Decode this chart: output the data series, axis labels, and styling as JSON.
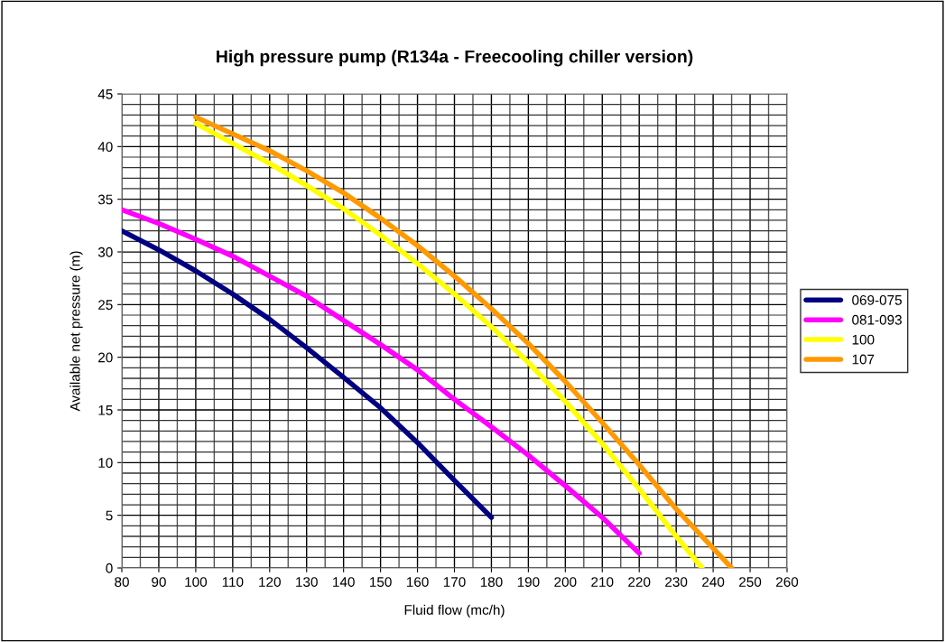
{
  "chart_data": {
    "type": "line",
    "title": "High pressure pump (R134a - Freecooling chiller version)",
    "xlabel": "Fluid flow (mc/h)",
    "ylabel": "Available net pressure (m)",
    "xlim": [
      80,
      260
    ],
    "xticks": [
      80,
      90,
      100,
      110,
      120,
      130,
      140,
      150,
      160,
      170,
      180,
      190,
      200,
      210,
      220,
      230,
      240,
      250,
      260
    ],
    "ylim": [
      0,
      45
    ],
    "yticks": [
      0,
      5,
      10,
      15,
      20,
      25,
      30,
      35,
      40,
      45
    ],
    "grid": true,
    "legend": "right",
    "marker": "none",
    "line_style": "solid",
    "series": [
      {
        "name": "069-075",
        "color": "#000080",
        "x": [
          80,
          90,
          100,
          110,
          120,
          130,
          140,
          150,
          160,
          170,
          180
        ],
        "values": [
          32,
          30.2,
          28.2,
          26.0,
          23.6,
          20.9,
          18.1,
          15.2,
          11.9,
          8.3,
          4.8
        ]
      },
      {
        "name": "081-093",
        "color": "#ff00ff",
        "x": [
          80,
          90,
          100,
          110,
          120,
          130,
          140,
          150,
          160,
          170,
          180,
          190,
          200,
          210,
          220
        ],
        "values": [
          34,
          32.7,
          31.2,
          29.6,
          27.7,
          25.8,
          23.5,
          21.2,
          18.8,
          16.0,
          13.4,
          10.7,
          7.8,
          4.8,
          1.4
        ]
      },
      {
        "name": "100",
        "color": "#ffff00",
        "x": [
          100,
          110,
          120,
          130,
          140,
          150,
          160,
          170,
          180,
          190,
          200,
          210,
          220,
          230,
          237
        ],
        "values": [
          42.2,
          40.3,
          38.4,
          36.3,
          34.1,
          31.6,
          28.9,
          26.0,
          22.9,
          19.5,
          15.8,
          11.8,
          7.5,
          3.0,
          0
        ]
      },
      {
        "name": "107",
        "color": "#ff9900",
        "x": [
          100,
          110,
          120,
          130,
          140,
          150,
          160,
          170,
          180,
          190,
          200,
          210,
          220,
          230,
          245
        ],
        "values": [
          42.8,
          41.2,
          39.6,
          37.7,
          35.6,
          33.2,
          30.6,
          27.7,
          24.6,
          21.3,
          17.7,
          13.8,
          9.8,
          5.6,
          0
        ]
      }
    ]
  }
}
